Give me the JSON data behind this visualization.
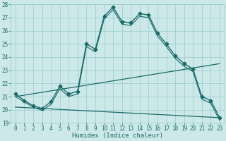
{
  "title": "",
  "xlabel": "Humidex (Indice chaleur)",
  "ylabel": "",
  "xlim": [
    -0.5,
    23.5
  ],
  "ylim": [
    19,
    28
  ],
  "xticks": [
    0,
    1,
    2,
    3,
    4,
    5,
    6,
    7,
    8,
    9,
    10,
    11,
    12,
    13,
    14,
    15,
    16,
    17,
    18,
    19,
    20,
    21,
    22,
    23
  ],
  "yticks": [
    19,
    20,
    21,
    22,
    23,
    24,
    25,
    26,
    27,
    28
  ],
  "bg_color": "#cce8e8",
  "line_color": "#1a6b6b",
  "grid_color": "#99cccc",
  "series": [
    {
      "x": [
        0,
        1,
        2,
        3,
        4,
        5,
        6,
        7,
        8,
        9,
        10,
        11,
        12,
        13,
        14,
        15,
        16,
        17,
        18,
        19,
        20,
        21,
        22,
        23
      ],
      "y": [
        21.2,
        20.7,
        20.3,
        20.1,
        20.6,
        21.8,
        21.2,
        21.4,
        25.0,
        24.6,
        27.1,
        27.8,
        26.7,
        26.6,
        27.3,
        27.2,
        25.8,
        25.0,
        24.1,
        23.5,
        23.1,
        21.0,
        20.7,
        19.4
      ],
      "marker": "D",
      "markersize": 2.5,
      "linewidth": 1.0
    },
    {
      "x": [
        0,
        1,
        2,
        3,
        4,
        5,
        6,
        7,
        8,
        9,
        10,
        11,
        12,
        13,
        14,
        15,
        16,
        17,
        18,
        19,
        20,
        21,
        22,
        23
      ],
      "y": [
        21.0,
        20.6,
        20.2,
        19.95,
        20.4,
        21.6,
        21.0,
        21.2,
        24.8,
        24.4,
        26.9,
        27.6,
        26.5,
        26.4,
        27.1,
        27.0,
        25.6,
        24.8,
        23.9,
        23.3,
        22.9,
        20.8,
        20.5,
        19.2
      ],
      "marker": null,
      "markersize": 0,
      "linewidth": 0.8
    },
    {
      "x": [
        0,
        23
      ],
      "y": [
        21.0,
        23.5
      ],
      "marker": null,
      "markersize": 0,
      "linewidth": 0.9
    },
    {
      "x": [
        0,
        23
      ],
      "y": [
        20.2,
        19.4
      ],
      "marker": null,
      "markersize": 0,
      "linewidth": 0.9
    }
  ]
}
